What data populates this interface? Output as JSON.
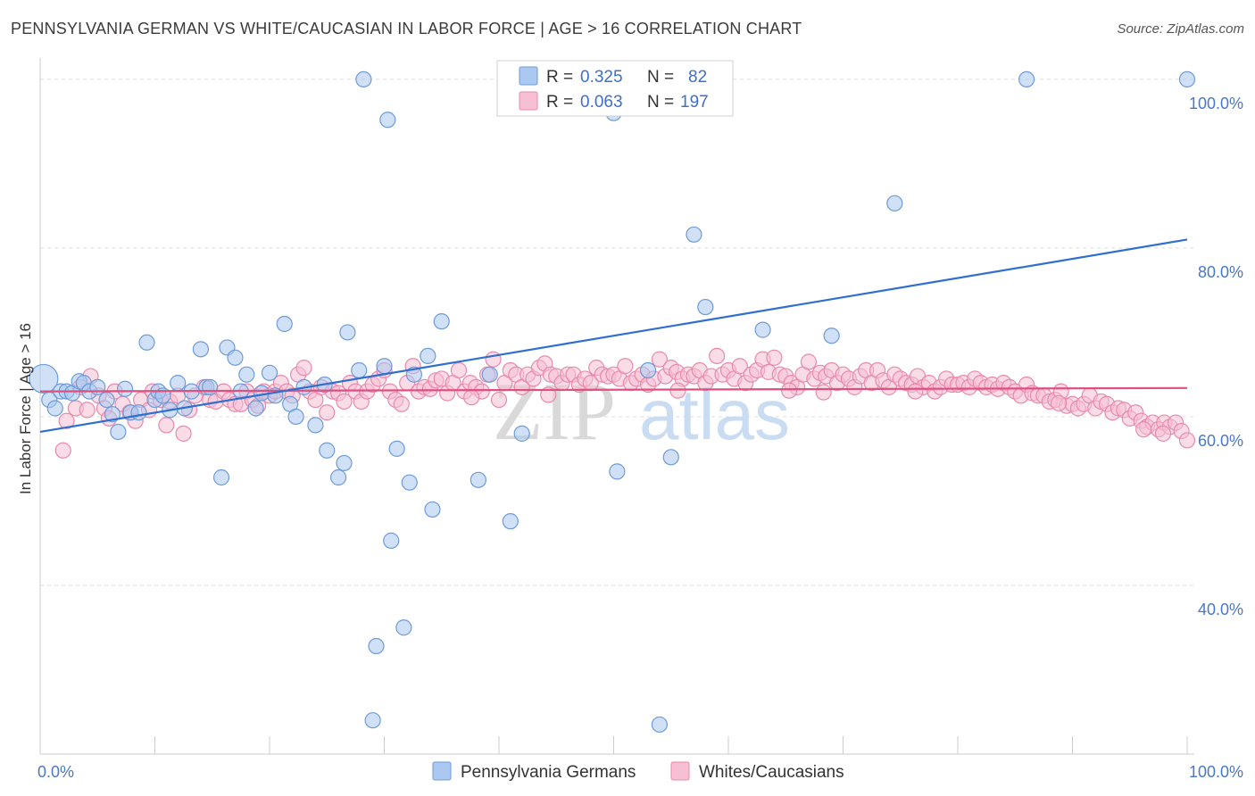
{
  "title": "PENNSYLVANIA GERMAN VS WHITE/CAUCASIAN IN LABOR FORCE | AGE > 16 CORRELATION CHART",
  "source": "Source: ZipAtlas.com",
  "watermark": {
    "zip": "ZIP",
    "atlas": "atlas"
  },
  "legend": {
    "rows": [
      {
        "r_label": "R =",
        "r_value": "0.325",
        "n_label": "N =",
        "n_value": "82"
      },
      {
        "r_label": "R =",
        "r_value": "0.063",
        "n_label": "N =",
        "n_value": "197"
      }
    ]
  },
  "colors": {
    "blue_fill": "#aac8f0",
    "blue_stroke": "#6f9bd8",
    "blue_line": "#2f6fd0",
    "pink_fill": "#f6bfd3",
    "pink_stroke": "#e88aad",
    "pink_line": "#e0507f",
    "tick_text": "#4a78c8",
    "grid": "#dddddd"
  },
  "chart_data": {
    "type": "scatter",
    "title": "PENNSYLVANIA GERMAN VS WHITE/CAUCASIAN IN LABOR FORCE | AGE > 16 CORRELATION CHART",
    "xlabel": "",
    "ylabel": "In Labor Force | Age > 16",
    "xlim": [
      0,
      100
    ],
    "ylim": [
      20,
      102
    ],
    "x_tick_labels": [
      "0.0%",
      "100.0%"
    ],
    "y_ticks": [
      40,
      60,
      80,
      100
    ],
    "y_tick_labels": [
      "40.0%",
      "60.0%",
      "80.0%",
      "100.0%"
    ],
    "grid": true,
    "legend_position": "bottom",
    "series": [
      {
        "name": "Pennsylvania Germans",
        "trend": [
          [
            0,
            58.2
          ],
          [
            100,
            81.0
          ]
        ],
        "points": [
          [
            0.3,
            64.5
          ],
          [
            0.8,
            62.0
          ],
          [
            1.3,
            61.0
          ],
          [
            1.8,
            63.0
          ],
          [
            2.3,
            63.0
          ],
          [
            2.8,
            62.8
          ],
          [
            3.4,
            64.2
          ],
          [
            3.8,
            64.0
          ],
          [
            4.3,
            63.0
          ],
          [
            5.0,
            63.5
          ],
          [
            5.8,
            62.0
          ],
          [
            6.3,
            60.3
          ],
          [
            6.8,
            58.2
          ],
          [
            7.4,
            63.3
          ],
          [
            7.9,
            60.5
          ],
          [
            8.6,
            60.5
          ],
          [
            9.3,
            68.8
          ],
          [
            10.0,
            62.0
          ],
          [
            10.3,
            63.0
          ],
          [
            10.7,
            62.5
          ],
          [
            11.3,
            60.8
          ],
          [
            12.0,
            64.0
          ],
          [
            12.6,
            61.0
          ],
          [
            13.2,
            63.0
          ],
          [
            14.0,
            68.0
          ],
          [
            14.5,
            63.5
          ],
          [
            14.8,
            63.5
          ],
          [
            15.8,
            52.8
          ],
          [
            16.3,
            68.2
          ],
          [
            17.0,
            67.0
          ],
          [
            17.5,
            63.0
          ],
          [
            18.0,
            65.0
          ],
          [
            18.8,
            61.0
          ],
          [
            19.3,
            62.8
          ],
          [
            20.0,
            65.2
          ],
          [
            20.5,
            62.5
          ],
          [
            21.3,
            71.0
          ],
          [
            21.8,
            61.5
          ],
          [
            22.3,
            60.0
          ],
          [
            23.0,
            63.5
          ],
          [
            24.0,
            59.0
          ],
          [
            24.8,
            63.8
          ],
          [
            25.0,
            56.0
          ],
          [
            26.0,
            52.8
          ],
          [
            26.5,
            54.5
          ],
          [
            26.8,
            70.0
          ],
          [
            27.8,
            65.5
          ],
          [
            28.2,
            100.0
          ],
          [
            29.0,
            24.0
          ],
          [
            29.3,
            32.8
          ],
          [
            30.0,
            66.0
          ],
          [
            30.3,
            95.2
          ],
          [
            30.6,
            45.3
          ],
          [
            31.1,
            56.2
          ],
          [
            31.7,
            35.0
          ],
          [
            32.2,
            52.2
          ],
          [
            32.6,
            65.0
          ],
          [
            33.8,
            67.2
          ],
          [
            34.2,
            49.0
          ],
          [
            35.0,
            71.3
          ],
          [
            38.2,
            52.5
          ],
          [
            39.2,
            65.0
          ],
          [
            41.0,
            47.6
          ],
          [
            42.0,
            58.0
          ],
          [
            47.0,
            100.0
          ],
          [
            50.0,
            96.0
          ],
          [
            50.3,
            53.5
          ],
          [
            53.0,
            65.5
          ],
          [
            54.0,
            23.5
          ],
          [
            55.0,
            55.2
          ],
          [
            57.0,
            81.6
          ],
          [
            58.0,
            73.0
          ],
          [
            63.0,
            70.3
          ],
          [
            69.0,
            69.6
          ],
          [
            74.5,
            85.3
          ],
          [
            86.0,
            100.0
          ],
          [
            100.0,
            100.0
          ]
        ]
      },
      {
        "name": "Whites/Caucasians",
        "trend": [
          [
            0,
            63.0
          ],
          [
            100,
            63.4
          ]
        ],
        "points": [
          [
            2.0,
            56.0
          ],
          [
            2.3,
            59.5
          ],
          [
            3.1,
            61.0
          ],
          [
            3.5,
            63.5
          ],
          [
            4.1,
            60.8
          ],
          [
            4.4,
            64.8
          ],
          [
            5.1,
            62.5
          ],
          [
            5.6,
            61.0
          ],
          [
            6.0,
            59.8
          ],
          [
            6.5,
            63.0
          ],
          [
            7.2,
            61.5
          ],
          [
            7.8,
            60.5
          ],
          [
            8.3,
            59.5
          ],
          [
            8.8,
            62.0
          ],
          [
            9.5,
            60.8
          ],
          [
            9.8,
            63.0
          ],
          [
            10.5,
            62.0
          ],
          [
            11.0,
            59.0
          ],
          [
            11.3,
            61.8
          ],
          [
            12.0,
            62.5
          ],
          [
            12.5,
            58.0
          ],
          [
            13.0,
            60.8
          ],
          [
            13.5,
            62.5
          ],
          [
            14.3,
            63.5
          ],
          [
            14.8,
            62.0
          ],
          [
            15.3,
            61.8
          ],
          [
            16.0,
            63.0
          ],
          [
            16.5,
            62.0
          ],
          [
            17.0,
            61.5
          ],
          [
            17.5,
            61.5
          ],
          [
            18.0,
            63.0
          ],
          [
            18.5,
            62.0
          ],
          [
            19.0,
            61.3
          ],
          [
            19.5,
            63.0
          ],
          [
            20.0,
            62.5
          ],
          [
            20.5,
            63.0
          ],
          [
            21.0,
            64.0
          ],
          [
            21.5,
            63.0
          ],
          [
            22.0,
            62.5
          ],
          [
            22.5,
            65.0
          ],
          [
            23.0,
            65.8
          ],
          [
            23.5,
            63.0
          ],
          [
            24.0,
            62.0
          ],
          [
            24.5,
            63.5
          ],
          [
            25.0,
            60.5
          ],
          [
            25.5,
            63.0
          ],
          [
            26.0,
            62.8
          ],
          [
            26.5,
            61.8
          ],
          [
            27.0,
            64.0
          ],
          [
            27.5,
            63.0
          ],
          [
            28.0,
            61.8
          ],
          [
            28.5,
            63.0
          ],
          [
            29.0,
            63.8
          ],
          [
            29.5,
            64.5
          ],
          [
            30.0,
            65.5
          ],
          [
            30.5,
            63.0
          ],
          [
            31.0,
            62.0
          ],
          [
            31.5,
            61.5
          ],
          [
            32.0,
            64.0
          ],
          [
            32.5,
            66.0
          ],
          [
            33.0,
            63.0
          ],
          [
            33.5,
            63.5
          ],
          [
            34.0,
            63.3
          ],
          [
            34.5,
            64.3
          ],
          [
            35.0,
            64.5
          ],
          [
            35.5,
            62.8
          ],
          [
            36.0,
            64.0
          ],
          [
            36.5,
            65.5
          ],
          [
            37.0,
            63.0
          ],
          [
            37.5,
            64.0
          ],
          [
            38.0,
            63.5
          ],
          [
            38.5,
            63.0
          ],
          [
            39.0,
            65.0
          ],
          [
            39.5,
            66.8
          ],
          [
            40.0,
            62.0
          ],
          [
            40.5,
            64.0
          ],
          [
            41.0,
            65.5
          ],
          [
            41.5,
            65.0
          ],
          [
            42.0,
            63.5
          ],
          [
            42.5,
            65.0
          ],
          [
            43.0,
            64.5
          ],
          [
            43.5,
            65.8
          ],
          [
            44.0,
            66.3
          ],
          [
            44.5,
            65.0
          ],
          [
            45.0,
            64.8
          ],
          [
            45.5,
            64.0
          ],
          [
            46.0,
            65.0
          ],
          [
            46.5,
            65.0
          ],
          [
            47.0,
            63.8
          ],
          [
            47.5,
            64.5
          ],
          [
            48.0,
            64.0
          ],
          [
            48.5,
            65.8
          ],
          [
            49.0,
            65.0
          ],
          [
            49.5,
            64.8
          ],
          [
            50.0,
            65.0
          ],
          [
            50.5,
            64.5
          ],
          [
            51.0,
            66.0
          ],
          [
            51.5,
            64.0
          ],
          [
            52.0,
            64.5
          ],
          [
            52.5,
            65.0
          ],
          [
            53.0,
            63.8
          ],
          [
            53.5,
            64.5
          ],
          [
            54.0,
            66.8
          ],
          [
            54.5,
            64.8
          ],
          [
            55.0,
            65.8
          ],
          [
            55.5,
            65.3
          ],
          [
            56.0,
            64.5
          ],
          [
            56.5,
            65.0
          ],
          [
            57.0,
            64.8
          ],
          [
            57.5,
            65.5
          ],
          [
            58.0,
            64.0
          ],
          [
            58.5,
            64.8
          ],
          [
            59.0,
            67.2
          ],
          [
            59.5,
            65.0
          ],
          [
            60.0,
            65.5
          ],
          [
            60.5,
            64.5
          ],
          [
            61.0,
            66.0
          ],
          [
            61.5,
            64.0
          ],
          [
            62.0,
            65.0
          ],
          [
            62.5,
            65.5
          ],
          [
            63.0,
            66.8
          ],
          [
            63.5,
            65.3
          ],
          [
            64.0,
            67.0
          ],
          [
            64.5,
            65.0
          ],
          [
            65.0,
            64.8
          ],
          [
            65.5,
            64.0
          ],
          [
            66.0,
            63.5
          ],
          [
            66.5,
            65.0
          ],
          [
            67.0,
            66.5
          ],
          [
            67.5,
            64.5
          ],
          [
            68.0,
            65.2
          ],
          [
            68.5,
            64.8
          ],
          [
            69.0,
            65.5
          ],
          [
            69.5,
            64.0
          ],
          [
            70.0,
            65.0
          ],
          [
            70.5,
            64.5
          ],
          [
            71.0,
            63.5
          ],
          [
            71.5,
            64.8
          ],
          [
            72.0,
            65.5
          ],
          [
            72.5,
            64.0
          ],
          [
            73.0,
            65.5
          ],
          [
            73.5,
            64.3
          ],
          [
            74.0,
            63.5
          ],
          [
            74.5,
            65.0
          ],
          [
            75.0,
            64.5
          ],
          [
            75.5,
            64.0
          ],
          [
            76.0,
            63.8
          ],
          [
            76.5,
            64.8
          ],
          [
            77.0,
            63.5
          ],
          [
            77.5,
            64.0
          ],
          [
            78.0,
            63.0
          ],
          [
            78.5,
            63.5
          ],
          [
            79.0,
            64.5
          ],
          [
            79.5,
            63.8
          ],
          [
            80.0,
            63.8
          ],
          [
            80.5,
            64.0
          ],
          [
            81.0,
            63.5
          ],
          [
            81.5,
            64.5
          ],
          [
            82.0,
            64.0
          ],
          [
            82.5,
            63.5
          ],
          [
            83.0,
            63.8
          ],
          [
            83.5,
            63.3
          ],
          [
            84.0,
            64.0
          ],
          [
            84.5,
            63.5
          ],
          [
            85.0,
            63.0
          ],
          [
            85.5,
            62.5
          ],
          [
            86.0,
            63.8
          ],
          [
            86.5,
            62.8
          ],
          [
            87.0,
            62.5
          ],
          [
            87.5,
            62.5
          ],
          [
            88.0,
            61.8
          ],
          [
            88.5,
            62.0
          ],
          [
            89.0,
            63.0
          ],
          [
            89.5,
            61.3
          ],
          [
            90.0,
            61.5
          ],
          [
            90.5,
            61.0
          ],
          [
            91.0,
            61.5
          ],
          [
            91.5,
            62.5
          ],
          [
            92.0,
            61.0
          ],
          [
            92.5,
            61.8
          ],
          [
            93.0,
            61.5
          ],
          [
            93.5,
            60.5
          ],
          [
            94.0,
            61.0
          ],
          [
            94.5,
            60.8
          ],
          [
            95.0,
            59.8
          ],
          [
            95.5,
            60.5
          ],
          [
            96.0,
            59.5
          ],
          [
            96.5,
            58.8
          ],
          [
            97.0,
            59.3
          ],
          [
            97.5,
            58.5
          ],
          [
            98.0,
            59.3
          ],
          [
            98.5,
            58.8
          ],
          [
            99.0,
            59.3
          ],
          [
            99.5,
            58.3
          ],
          [
            100.0,
            57.2
          ],
          [
            96.2,
            58.5
          ],
          [
            97.9,
            58.0
          ],
          [
            88.8,
            61.6
          ],
          [
            37.6,
            62.3
          ],
          [
            44.3,
            62.6
          ],
          [
            55.6,
            63.1
          ],
          [
            65.3,
            63.1
          ],
          [
            76.3,
            63.0
          ],
          [
            68.3,
            62.9
          ]
        ]
      }
    ]
  }
}
